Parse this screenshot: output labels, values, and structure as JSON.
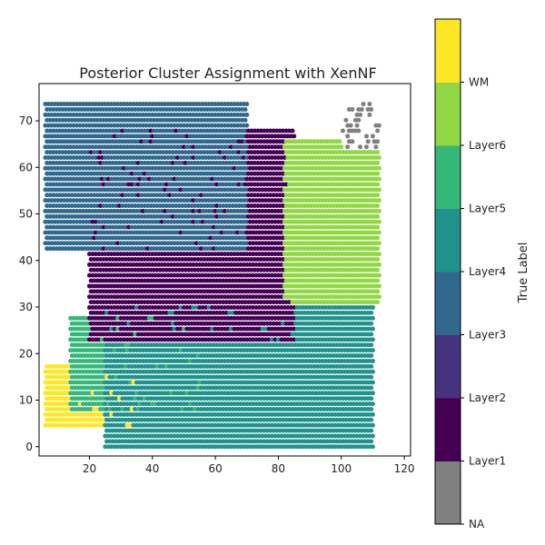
{
  "chart_data": {
    "type": "scatter",
    "title": "Posterior Cluster Assignment with XenNF",
    "xlim": [
      4,
      122
    ],
    "ylim": [
      78,
      -2
    ],
    "y_inverted": true,
    "x_ticks": [
      20,
      40,
      60,
      80,
      100,
      120
    ],
    "y_ticks": [
      0,
      10,
      20,
      30,
      40,
      50,
      60,
      70
    ],
    "grid": false,
    "colorbar": {
      "label": "True Label",
      "categories": [
        "NA",
        "Layer1",
        "Layer2",
        "Layer3",
        "Layer4",
        "Layer5",
        "Layer6",
        "WM"
      ],
      "tick_labels": [
        "NA",
        "Layer1",
        "Layer2",
        "Layer3",
        "Layer4",
        "Layer5",
        "Layer6",
        "WM"
      ],
      "tick_positions": [
        0,
        0.875,
        1.75,
        2.625,
        3.5,
        4.375,
        5.25,
        6.125,
        7
      ],
      "colors": [
        "#808080",
        "#440154",
        "#46327e",
        "#31688e",
        "#21918c",
        "#35b779",
        "#90d743",
        "#fde725"
      ]
    },
    "spots": {
      "grid_step_x": 1,
      "grid_step_y": 1.15,
      "regions": [
        {
          "label": "WM",
          "x": [
            6,
            34
          ],
          "y": [
            4,
            18
          ]
        },
        {
          "label": "Layer5",
          "x": [
            14,
            55
          ],
          "y": [
            8,
            28
          ]
        },
        {
          "label": "Layer4",
          "x": [
            25,
            110
          ],
          "y": [
            0,
            30
          ]
        },
        {
          "label": "Layer1",
          "x": [
            20,
            85
          ],
          "y": [
            22,
            68
          ]
        },
        {
          "label": "Layer3",
          "x": [
            6,
            70
          ],
          "y": [
            42,
            74
          ]
        },
        {
          "label": "Layer6",
          "x": [
            82,
            112
          ],
          "y": [
            30,
            66
          ]
        },
        {
          "label": "NA",
          "x": [
            98,
            112
          ],
          "y": [
            64,
            76
          ]
        }
      ]
    }
  }
}
